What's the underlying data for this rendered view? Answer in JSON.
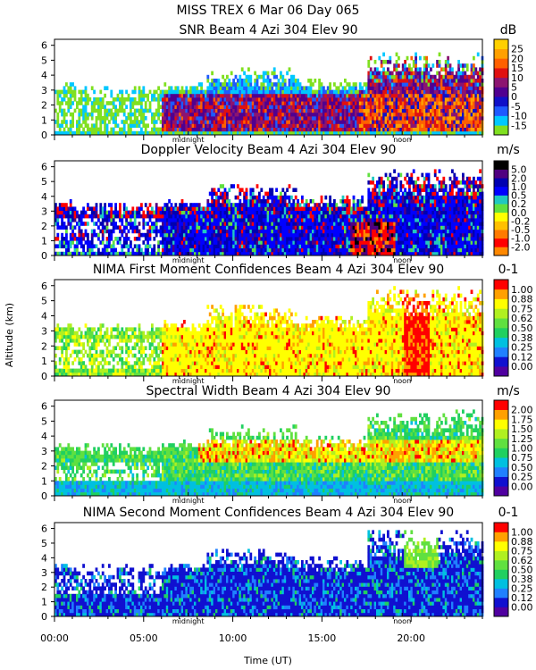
{
  "header": {
    "line1": "MISS TREX    6 Mar 06 Day 065"
  },
  "x_axis": {
    "label": "Time (UT)",
    "range": [
      0,
      24
    ],
    "ticks": [
      {
        "v": 0,
        "label": "00:00"
      },
      {
        "v": 5,
        "label": "05:00"
      },
      {
        "v": 10,
        "label": "10:00"
      },
      {
        "v": 15,
        "label": "15:00"
      },
      {
        "v": 20,
        "label": "20:00"
      }
    ],
    "markers": [
      {
        "v": 7.5,
        "label": "midnight"
      },
      {
        "v": 19.5,
        "label": "noon"
      }
    ]
  },
  "y_axis": {
    "label": "Altitude (km)",
    "range": [
      0,
      6.4
    ],
    "ticks": [
      "0",
      "1",
      "2",
      "3",
      "4",
      "5",
      "6"
    ]
  },
  "chart_data": [
    {
      "type": "heatmap",
      "title": "SNR Beam 4 Azi 304 Elev 90",
      "unit": "dB",
      "colorbar": {
        "colors": [
          "#80e020",
          "#00c8ff",
          "#1e5aff",
          "#1010c8",
          "#500090",
          "#8c1470",
          "#e01010",
          "#ff6000",
          "#ffa000",
          "#ffd000"
        ],
        "labels": [
          "-15",
          "-10",
          "-5",
          "0",
          "5",
          "10",
          "15",
          "20",
          "25"
        ]
      }
    },
    {
      "type": "heatmap",
      "title": "Doppler Velocity Beam 4 Azi 304 Elev 90",
      "unit": "m/s",
      "colorbar": {
        "colors": [
          "#ff8800",
          "#ff0000",
          "#ff7a00",
          "#ffc000",
          "#ffff00",
          "#60e040",
          "#20c8c0",
          "#0000ff",
          "#0000b0",
          "#500080",
          "#000000"
        ],
        "labels": [
          "-2.0",
          "-1.0",
          "-0.5",
          "-0.2",
          "0.0",
          "0.2",
          "0.5",
          "1.0",
          "2.0",
          "5.0"
        ]
      }
    },
    {
      "type": "heatmap",
      "title": "NIMA First Moment Confidences Beam 4 Azi 304 Elev 90",
      "unit": "0-1",
      "colorbar": {
        "colors": [
          "#5000a0",
          "#1010d0",
          "#2080ff",
          "#00c0e0",
          "#20d060",
          "#60e040",
          "#b0f020",
          "#ffff00",
          "#ffa000",
          "#ff0000"
        ],
        "labels": [
          "0.00",
          "0.12",
          "0.25",
          "0.38",
          "0.50",
          "0.62",
          "0.75",
          "0.88",
          "1.00"
        ]
      }
    },
    {
      "type": "heatmap",
      "title": "Spectral Width Beam 4 Azi 304 Elev 90",
      "unit": "m/s",
      "colorbar": {
        "colors": [
          "#5000a0",
          "#1010d0",
          "#2080ff",
          "#00c0e0",
          "#20d060",
          "#60e040",
          "#b0f020",
          "#ffff00",
          "#ffa000",
          "#ff0000"
        ],
        "labels": [
          "0.00",
          "0.25",
          "0.50",
          "0.75",
          "1.00",
          "1.25",
          "1.50",
          "1.75",
          "2.00"
        ]
      }
    },
    {
      "type": "heatmap",
      "title": "NIMA Second Moment Confidences Beam 4 Azi 304 Elev 90",
      "unit": "0-1",
      "colorbar": {
        "colors": [
          "#5000a0",
          "#1010d0",
          "#2080ff",
          "#00c0e0",
          "#20d060",
          "#60e040",
          "#b0f020",
          "#ffff00",
          "#ffa000",
          "#ff0000"
        ],
        "labels": [
          "0.00",
          "0.12",
          "0.25",
          "0.38",
          "0.50",
          "0.62",
          "0.75",
          "0.88",
          "1.00"
        ]
      }
    }
  ]
}
